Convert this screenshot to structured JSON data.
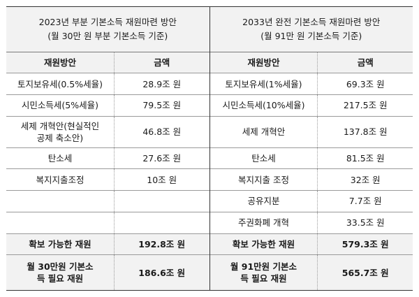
{
  "left": {
    "title": "2023년 부분 기본소득 재원마련 방안",
    "subtitle": "(월 30만 원 부분 기본소득 기준)",
    "col_method": "재원방안",
    "col_amount": "금액",
    "rows": [
      {
        "method": "토지보유세(0.5%세율)",
        "amount": "28.9조 원"
      },
      {
        "method": "시민소득세(5%세율)",
        "amount": "79.5조 원"
      },
      {
        "method": "세제 개혁안(현실적인 공제 축소안)",
        "amount": "46.8조 원"
      },
      {
        "method": "탄소세",
        "amount": "27.6조 원"
      },
      {
        "method": "복지지출조정",
        "amount": "10조 원"
      },
      {
        "method": "",
        "amount": ""
      },
      {
        "method": "",
        "amount": ""
      }
    ],
    "total_label": "확보 가능한 재원",
    "total_value": "192.8조 원",
    "need_label": "월 30만원 기본소득 필요 재원",
    "need_value": "186.6조 원"
  },
  "right": {
    "title": "2033년 완전 기본소득 재원마련 방안",
    "subtitle": "(월 91만 원 기본소득 기준)",
    "col_method": "재원방안",
    "col_amount": "금액",
    "rows": [
      {
        "method": "토지보유세(1%세율)",
        "amount": "69.3조 원"
      },
      {
        "method": "시민소득세(10%세율)",
        "amount": "217.5조 원"
      },
      {
        "method": "세제 개혁안",
        "amount": "137.8조 원"
      },
      {
        "method": "탄소세",
        "amount": "81.5조 원"
      },
      {
        "method": "복지지출 조정",
        "amount": "32조 원"
      },
      {
        "method": "공유지분",
        "amount": "7.7조 원"
      },
      {
        "method": "주권화폐 개혁",
        "amount": "33.5조 원"
      }
    ],
    "total_label": "확보 가능한 재원",
    "total_value": "579.3조 원",
    "need_label": "월 91만원 기본소득 필요 재원",
    "need_value": "565.7조 원"
  }
}
